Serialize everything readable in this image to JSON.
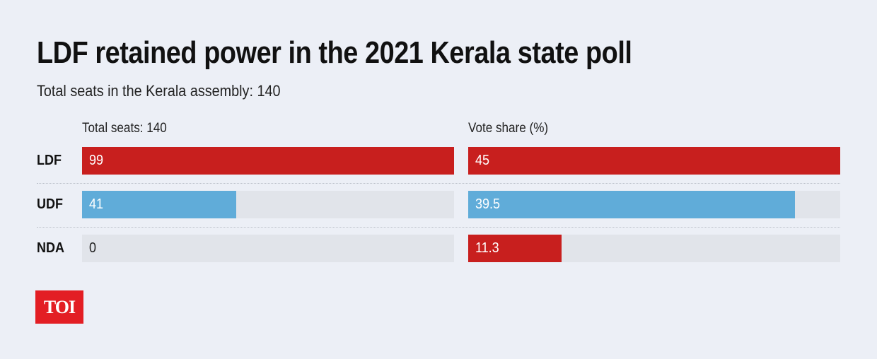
{
  "title": "LDF retained power in the 2021 Kerala state poll",
  "subtitle": "Total seats in the Kerala assembly: 140",
  "logo": "TOI",
  "colors": {
    "red": "#c81f1e",
    "blue": "#60acd9",
    "track": "#e1e4ea",
    "background": "#eceff6"
  },
  "chart_data": [
    {
      "type": "bar",
      "orientation": "horizontal",
      "title": "Total seats: 140",
      "categories": [
        "LDF",
        "UDF",
        "NDA"
      ],
      "values": [
        99,
        41,
        0
      ],
      "bar_colors": [
        "#c81f1e",
        "#60acd9",
        "#c81f1e"
      ],
      "xlim": [
        0,
        99
      ]
    },
    {
      "type": "bar",
      "orientation": "horizontal",
      "title": "Vote share (%)",
      "categories": [
        "LDF",
        "UDF",
        "NDA"
      ],
      "values": [
        45,
        39.5,
        11.3
      ],
      "bar_colors": [
        "#c81f1e",
        "#60acd9",
        "#c81f1e"
      ],
      "xlim": [
        0,
        45
      ]
    }
  ]
}
